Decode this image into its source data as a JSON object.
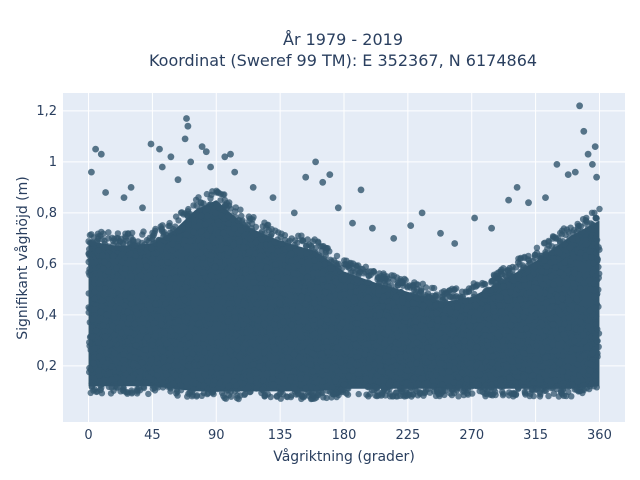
{
  "chart_data": {
    "type": "scatter",
    "title_lines": [
      "År 1979 - 2019",
      "Koordinat (Sweref 99 TM): E 352367, N 6174864"
    ],
    "xlabel": "Vågriktning (grader)",
    "ylabel": "Signifikant våghöjd (m)",
    "xlim": [
      -18,
      378
    ],
    "ylim": [
      -0.02,
      1.27
    ],
    "xticks": [
      0,
      45,
      90,
      135,
      180,
      225,
      270,
      315,
      360
    ],
    "yticks": [
      0.2,
      0.4,
      0.6,
      0.8,
      1.0,
      1.2
    ],
    "ytick_labels": [
      "0,2",
      "0,4",
      "0,6",
      "0,8",
      "1",
      "1,2"
    ],
    "grid": true,
    "colors": {
      "marker": "#31556d",
      "plot_bg": "#e5ecf6",
      "grid": "#ffffff"
    },
    "envelope": {
      "note": "dense point cloud; lower/upper bound of bulk cloud by direction",
      "x": [
        0,
        20,
        45,
        60,
        75,
        90,
        110,
        135,
        160,
        180,
        200,
        225,
        250,
        270,
        290,
        315,
        340,
        360
      ],
      "low": [
        0.09,
        0.09,
        0.09,
        0.08,
        0.07,
        0.07,
        0.07,
        0.07,
        0.07,
        0.08,
        0.08,
        0.08,
        0.08,
        0.08,
        0.08,
        0.08,
        0.08,
        0.09
      ],
      "high": [
        0.74,
        0.72,
        0.73,
        0.78,
        0.86,
        0.9,
        0.8,
        0.74,
        0.7,
        0.62,
        0.58,
        0.54,
        0.5,
        0.52,
        0.58,
        0.66,
        0.76,
        0.82
      ]
    },
    "outliers": [
      {
        "x": 2,
        "y": 0.96
      },
      {
        "x": 5,
        "y": 1.05
      },
      {
        "x": 9,
        "y": 1.03
      },
      {
        "x": 12,
        "y": 0.88
      },
      {
        "x": 25,
        "y": 0.86
      },
      {
        "x": 30,
        "y": 0.9
      },
      {
        "x": 38,
        "y": 0.82
      },
      {
        "x": 44,
        "y": 1.07
      },
      {
        "x": 50,
        "y": 1.05
      },
      {
        "x": 52,
        "y": 0.98
      },
      {
        "x": 58,
        "y": 1.02
      },
      {
        "x": 63,
        "y": 0.93
      },
      {
        "x": 68,
        "y": 1.09
      },
      {
        "x": 69,
        "y": 1.17
      },
      {
        "x": 70,
        "y": 1.14
      },
      {
        "x": 72,
        "y": 1.0
      },
      {
        "x": 80,
        "y": 1.06
      },
      {
        "x": 83,
        "y": 1.04
      },
      {
        "x": 86,
        "y": 0.98
      },
      {
        "x": 96,
        "y": 1.02
      },
      {
        "x": 100,
        "y": 1.03
      },
      {
        "x": 103,
        "y": 0.96
      },
      {
        "x": 116,
        "y": 0.9
      },
      {
        "x": 130,
        "y": 0.86
      },
      {
        "x": 145,
        "y": 0.8
      },
      {
        "x": 153,
        "y": 0.94
      },
      {
        "x": 160,
        "y": 1.0
      },
      {
        "x": 165,
        "y": 0.92
      },
      {
        "x": 170,
        "y": 0.95
      },
      {
        "x": 176,
        "y": 0.82
      },
      {
        "x": 186,
        "y": 0.76
      },
      {
        "x": 192,
        "y": 0.89
      },
      {
        "x": 200,
        "y": 0.74
      },
      {
        "x": 215,
        "y": 0.7
      },
      {
        "x": 227,
        "y": 0.75
      },
      {
        "x": 235,
        "y": 0.8
      },
      {
        "x": 248,
        "y": 0.72
      },
      {
        "x": 258,
        "y": 0.68
      },
      {
        "x": 272,
        "y": 0.78
      },
      {
        "x": 284,
        "y": 0.74
      },
      {
        "x": 296,
        "y": 0.85
      },
      {
        "x": 302,
        "y": 0.9
      },
      {
        "x": 310,
        "y": 0.84
      },
      {
        "x": 322,
        "y": 0.86
      },
      {
        "x": 330,
        "y": 0.99
      },
      {
        "x": 338,
        "y": 0.95
      },
      {
        "x": 343,
        "y": 0.96
      },
      {
        "x": 346,
        "y": 1.22
      },
      {
        "x": 349,
        "y": 1.12
      },
      {
        "x": 352,
        "y": 1.03
      },
      {
        "x": 355,
        "y": 0.99
      },
      {
        "x": 357,
        "y": 1.06
      },
      {
        "x": 358,
        "y": 0.94
      }
    ]
  }
}
